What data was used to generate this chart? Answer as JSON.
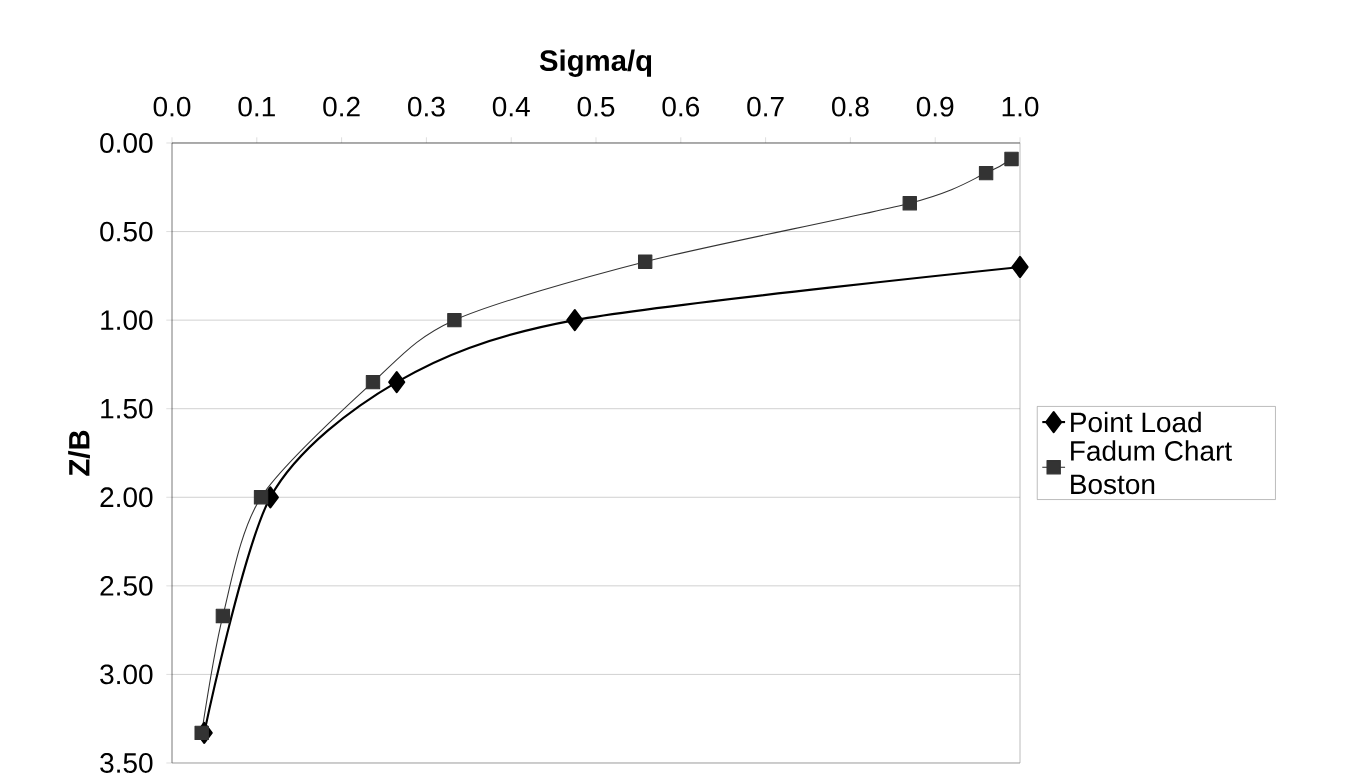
{
  "chart_data": {
    "type": "line",
    "xlabel": "Sigma/q",
    "ylabel": "Z/B",
    "xlim": [
      0,
      1
    ],
    "ylim": [
      3.5,
      0
    ],
    "xticks": [
      {
        "value": 0,
        "label": "0.0"
      },
      {
        "value": 0.1,
        "label": "0.1"
      },
      {
        "value": 0.2,
        "label": "0.2"
      },
      {
        "value": 0.3,
        "label": "0.3"
      },
      {
        "value": 0.4,
        "label": "0.4"
      },
      {
        "value": 0.5,
        "label": "0.5"
      },
      {
        "value": 0.6,
        "label": "0.6"
      },
      {
        "value": 0.7,
        "label": "0.7"
      },
      {
        "value": 0.8,
        "label": "0.8"
      },
      {
        "value": 0.9,
        "label": "0.9"
      },
      {
        "value": 1,
        "label": "1.0"
      }
    ],
    "yticks": [
      {
        "value": 0,
        "label": "0.00"
      },
      {
        "value": 0.5,
        "label": "0.50"
      },
      {
        "value": 1,
        "label": "1.00"
      },
      {
        "value": 1.5,
        "label": "1.50"
      },
      {
        "value": 2,
        "label": "2.00"
      },
      {
        "value": 2.5,
        "label": "2.50"
      },
      {
        "value": 3,
        "label": "3.00"
      },
      {
        "value": 3.5,
        "label": "3.50"
      }
    ],
    "grid": "y",
    "legend": "right",
    "series": [
      {
        "name": "Point Load",
        "color": "#000000",
        "marker": "diamond",
        "x": [
          0.038,
          0.116,
          0.265,
          0.475,
          1.0
        ],
        "values": [
          3.33,
          2.0,
          1.35,
          1.0,
          0.7
        ]
      },
      {
        "name": "Fadum Chart Boston",
        "color": "#333333",
        "marker": "square",
        "x": [
          0.035,
          0.06,
          0.105,
          0.237,
          0.333,
          0.558,
          0.87,
          0.96,
          0.99
        ],
        "values": [
          3.33,
          2.67,
          2.0,
          1.35,
          1.0,
          0.67,
          0.34,
          0.17,
          0.09
        ]
      }
    ]
  }
}
